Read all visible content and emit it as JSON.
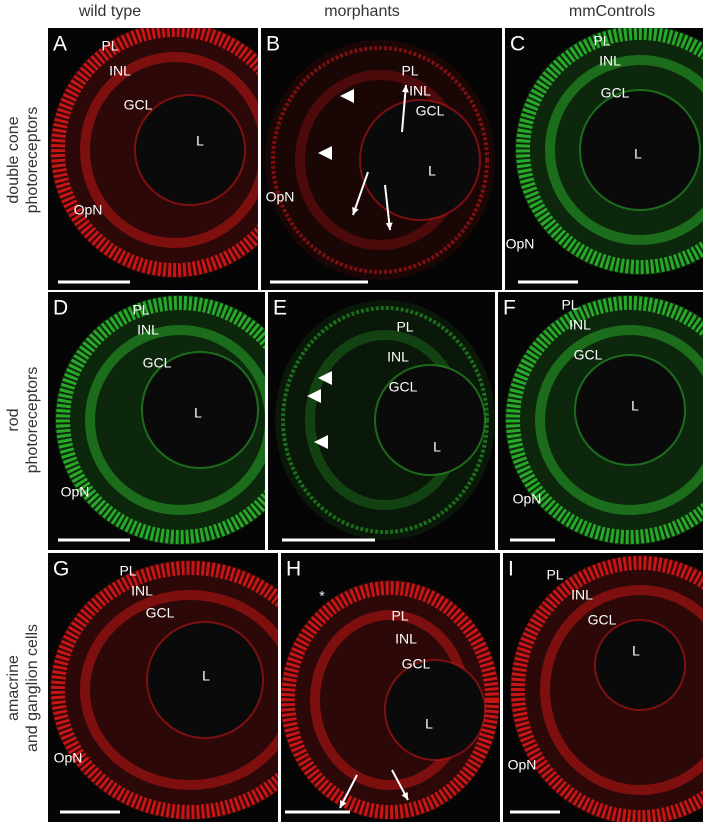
{
  "column_headers": [
    "wild type",
    "morphants",
    "mmControls"
  ],
  "row_labels": [
    [
      "double cone",
      "photoreceptors"
    ],
    [
      "rod",
      "photoreceptors"
    ],
    [
      "amacrine",
      "and ganglion cells"
    ]
  ],
  "panels": [
    {
      "letter": "A",
      "labels": [
        "PL",
        "INL",
        "GCL",
        "L",
        "OpN"
      ]
    },
    {
      "letter": "B",
      "labels": [
        "PL",
        "INL",
        "GCL",
        "L",
        "OpN"
      ]
    },
    {
      "letter": "C",
      "labels": [
        "PL",
        "INL",
        "GCL",
        "L",
        "OpN"
      ]
    },
    {
      "letter": "D",
      "labels": [
        "PL",
        "INL",
        "GCL",
        "L",
        "OpN"
      ]
    },
    {
      "letter": "E",
      "labels": [
        "PL",
        "INL",
        "GCL",
        "L"
      ]
    },
    {
      "letter": "F",
      "labels": [
        "PL",
        "INL",
        "GCL",
        "L",
        "OpN"
      ]
    },
    {
      "letter": "G",
      "labels": [
        "PL",
        "INL",
        "GCL",
        "L",
        "OpN"
      ]
    },
    {
      "letter": "H",
      "labels": [
        "*",
        "PL",
        "INL",
        "GCL",
        "L"
      ]
    },
    {
      "letter": "I",
      "labels": [
        "PL",
        "INL",
        "GCL",
        "L",
        "OpN"
      ]
    }
  ]
}
